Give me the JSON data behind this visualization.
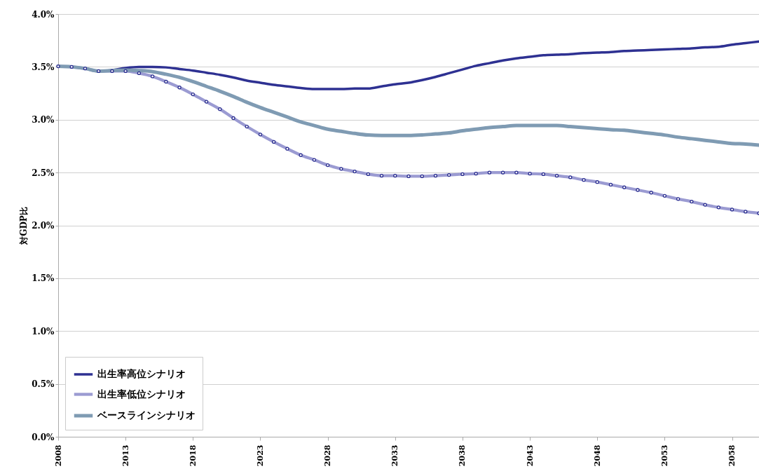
{
  "chart_data": {
    "type": "line",
    "ylabel": "対GDP比",
    "x": [
      2008,
      2009,
      2010,
      2011,
      2012,
      2013,
      2014,
      2015,
      2016,
      2017,
      2018,
      2019,
      2020,
      2021,
      2022,
      2023,
      2024,
      2025,
      2026,
      2027,
      2028,
      2029,
      2030,
      2031,
      2032,
      2033,
      2034,
      2035,
      2036,
      2037,
      2038,
      2039,
      2040,
      2041,
      2042,
      2043,
      2044,
      2045,
      2046,
      2047,
      2048,
      2049,
      2050,
      2051,
      2052,
      2053,
      2054,
      2055,
      2056,
      2057,
      2058,
      2059,
      2060
    ],
    "series": [
      {
        "name": "出生率高位シナリオ",
        "color": "#2e3192",
        "marker": "none",
        "values": [
          3.505,
          3.5,
          3.485,
          3.46,
          3.47,
          3.49,
          3.5,
          3.5,
          3.495,
          3.48,
          3.465,
          3.445,
          3.425,
          3.4,
          3.37,
          3.35,
          3.33,
          3.315,
          3.3,
          3.29,
          3.29,
          3.29,
          3.295,
          3.295,
          3.315,
          3.335,
          3.35,
          3.375,
          3.405,
          3.44,
          3.475,
          3.51,
          3.535,
          3.56,
          3.58,
          3.595,
          3.61,
          3.615,
          3.62,
          3.63,
          3.635,
          3.64,
          3.65,
          3.655,
          3.66,
          3.665,
          3.67,
          3.675,
          3.685,
          3.69,
          3.71,
          3.725,
          3.74
        ]
      },
      {
        "name": "出生率低位シナリオ",
        "color": "#9b9bd2",
        "marker": "circle",
        "values": [
          3.505,
          3.5,
          3.485,
          3.46,
          3.46,
          3.46,
          3.44,
          3.41,
          3.36,
          3.305,
          3.24,
          3.17,
          3.1,
          3.015,
          2.935,
          2.86,
          2.79,
          2.725,
          2.665,
          2.62,
          2.57,
          2.535,
          2.51,
          2.485,
          2.47,
          2.47,
          2.465,
          2.465,
          2.47,
          2.477,
          2.485,
          2.49,
          2.5,
          2.5,
          2.5,
          2.49,
          2.485,
          2.47,
          2.455,
          2.43,
          2.41,
          2.385,
          2.36,
          2.335,
          2.31,
          2.28,
          2.25,
          2.225,
          2.195,
          2.17,
          2.15,
          2.13,
          2.115
        ]
      },
      {
        "name": "ベースラインシナリオ",
        "color": "#7f9bb3",
        "marker": "none",
        "values": [
          3.505,
          3.5,
          3.485,
          3.46,
          3.465,
          3.47,
          3.465,
          3.455,
          3.43,
          3.4,
          3.36,
          3.315,
          3.27,
          3.22,
          3.165,
          3.115,
          3.07,
          3.025,
          2.98,
          2.945,
          2.91,
          2.89,
          2.87,
          2.855,
          2.85,
          2.85,
          2.85,
          2.855,
          2.865,
          2.875,
          2.895,
          2.91,
          2.925,
          2.935,
          2.945,
          2.945,
          2.945,
          2.945,
          2.935,
          2.925,
          2.915,
          2.905,
          2.9,
          2.885,
          2.87,
          2.855,
          2.835,
          2.82,
          2.805,
          2.79,
          2.775,
          2.77,
          2.76
        ]
      }
    ],
    "xlim": [
      2008,
      2060
    ],
    "xticks": [
      2008,
      2013,
      2018,
      2023,
      2028,
      2033,
      2038,
      2043,
      2048,
      2053,
      2058
    ],
    "ylim": [
      0,
      4
    ],
    "yticks": [
      {
        "value": 0,
        "label": "0.0%"
      },
      {
        "value": 0.5,
        "label": "0.5%"
      },
      {
        "value": 1,
        "label": "1.0%"
      },
      {
        "value": 1.5,
        "label": "1.5%"
      },
      {
        "value": 2,
        "label": "2.0%"
      },
      {
        "value": 2.5,
        "label": "2.5%"
      },
      {
        "value": 3,
        "label": "3.0%"
      },
      {
        "value": 3.5,
        "label": "3.5%"
      },
      {
        "value": 4,
        "label": "4.0%"
      }
    ],
    "grid": "y",
    "legend": "bottom left"
  }
}
